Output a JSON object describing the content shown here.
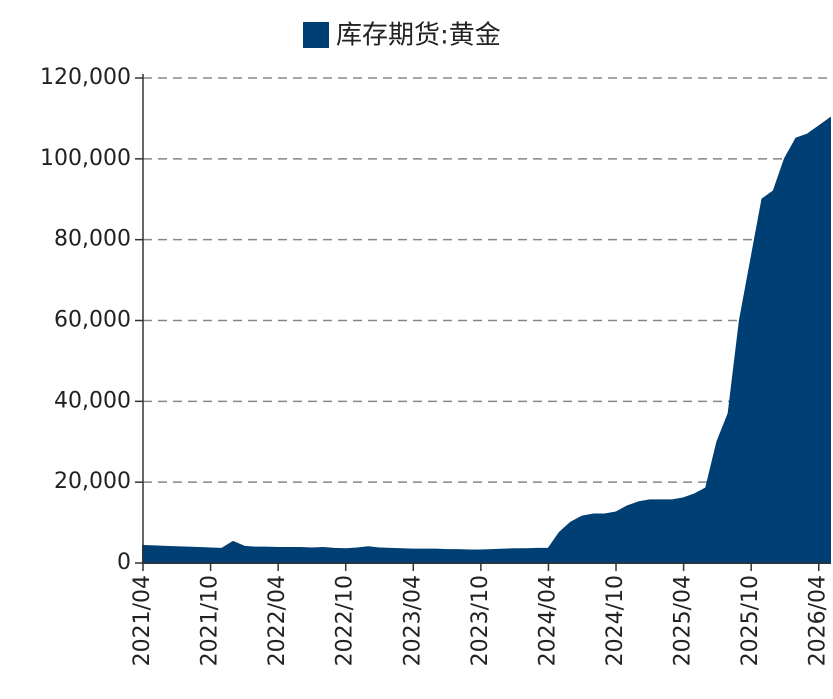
{
  "chart_data": {
    "type": "area",
    "series": [
      {
        "name": "库存期货:黄金",
        "color": "#003f73",
        "values": [
          4200,
          4100,
          4000,
          3900,
          3800,
          3700,
          3600,
          3500,
          5200,
          4000,
          3800,
          3800,
          3700,
          3700,
          3700,
          3600,
          3700,
          3500,
          3400,
          3600,
          3900,
          3600,
          3500,
          3400,
          3300,
          3300,
          3300,
          3200,
          3200,
          3100,
          3100,
          3200,
          3300,
          3400,
          3400,
          3500,
          3500,
          7500,
          10000,
          11500,
          12000,
          12000,
          12500,
          14000,
          15000,
          15500,
          15500,
          15500,
          16000,
          17000,
          18500,
          30000,
          37000,
          60000,
          75000,
          90000,
          92000,
          100000,
          105000,
          106000,
          108000,
          110000
        ]
      }
    ],
    "categories": [
      "2021/04",
      null,
      null,
      null,
      null,
      null,
      "2021/10",
      null,
      null,
      null,
      null,
      null,
      "2022/04",
      null,
      null,
      null,
      null,
      null,
      "2022/10",
      null,
      null,
      null,
      null,
      null,
      "2023/04",
      null,
      null,
      null,
      null,
      null,
      "2023/10",
      null,
      null,
      null,
      null,
      null,
      "2024/04",
      null,
      null,
      null,
      null,
      null,
      "2024/10",
      null,
      null,
      null,
      null,
      null,
      "2025/04",
      null,
      null,
      null,
      null,
      null,
      "2025/10",
      null,
      null,
      null,
      null,
      null,
      "2026/04",
      null
    ],
    "ylim": [
      0,
      120000
    ],
    "yticks": [
      0,
      {
        "value": 20000,
        "label": "20,000"
      },
      {
        "value": 40000,
        "label": "40,000"
      },
      {
        "value": 60000,
        "label": "60,000"
      },
      {
        "value": 80000,
        "label": "80,000"
      },
      {
        "value": 100000,
        "label": "100,000"
      },
      {
        "value": 120000,
        "label": "120,000"
      }
    ],
    "grid": true,
    "legend": "top"
  }
}
